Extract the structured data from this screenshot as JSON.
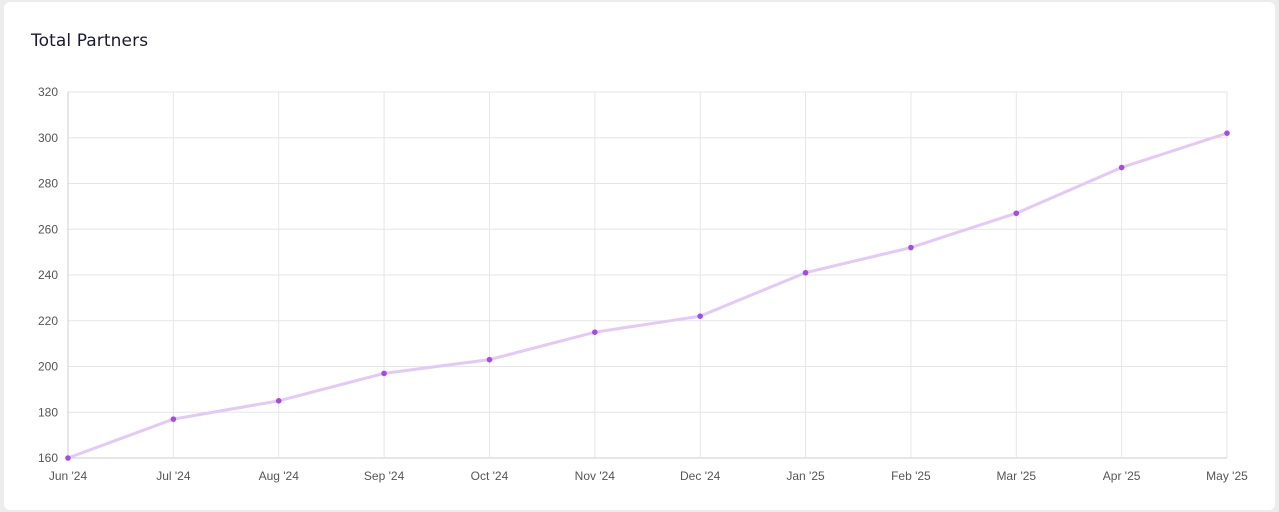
{
  "card": {
    "title": "Total Partners"
  },
  "chart_data": {
    "type": "line",
    "title": "Total Partners",
    "xlabel": "",
    "ylabel": "",
    "categories": [
      "Jun '24",
      "Jul '24",
      "Aug '24",
      "Sep '24",
      "Oct '24",
      "Nov '24",
      "Dec '24",
      "Jan '25",
      "Feb '25",
      "Mar '25",
      "Apr '25",
      "May '25"
    ],
    "series": [
      {
        "values": [
          160,
          177,
          185,
          197,
          203,
          215,
          222,
          241,
          252,
          267,
          287,
          302
        ]
      }
    ],
    "ylim": [
      160,
      320
    ],
    "yticks": [
      160,
      180,
      200,
      220,
      240,
      260,
      280,
      300,
      320
    ],
    "grid": true,
    "legend": "none",
    "colors": {
      "line": "#e2c9f7",
      "point": "#a24be8",
      "grid": "#e6e6e6",
      "axis": "#cccccc",
      "tick_text": "#555555"
    }
  }
}
